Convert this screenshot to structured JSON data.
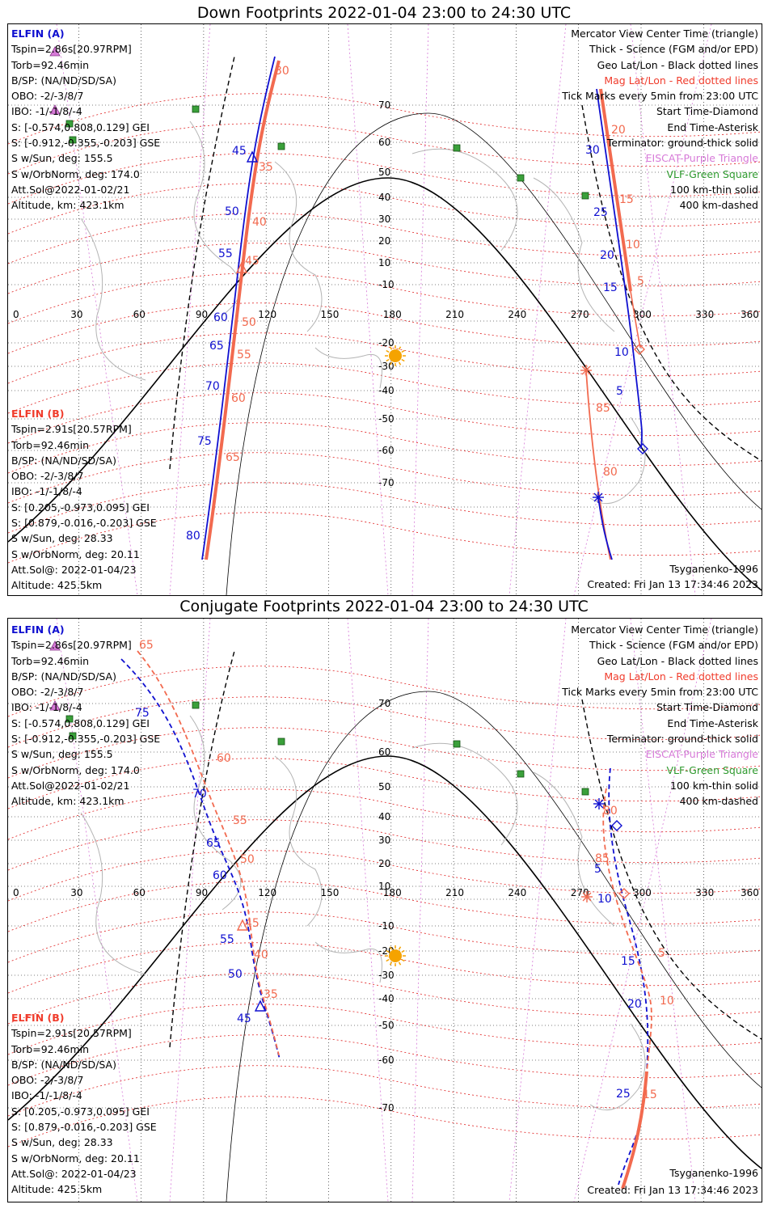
{
  "panels": [
    {
      "id": "down",
      "title": "Down Footprints 2022-01-04 23:00 to 24:30 UTC",
      "elfin_a": {
        "header": "ELFIN (A)",
        "lines": [
          "Tspin=2.86s[20.97RPM]",
          "Torb=92.46min",
          "B/SP: (NA/ND/SD/SA)",
          "OBO: -2/-3/8/7",
          "IBO: -1/-1/8/-4",
          "S: [-0.574,0.808,0.129] GEI",
          "S: [-0.912,-0.355,-0.203] GSE",
          "S w/Sun, deg: 155.5",
          "S w/OrbNorm, deg: 174.0",
          "Att.Sol@2022-01-02/21",
          "Altitude, km: 423.1km"
        ]
      },
      "elfin_b": {
        "header": "ELFIN (B)",
        "lines": [
          "Tspin=2.91s[20.57RPM]",
          "Torb=92.46min",
          "B/SP: (NA/ND/SD/SA)",
          "OBO: -2/-3/8/7",
          "IBO: -1/-1/8/-4",
          "S: [0.205,-0.973,0.095] GEI",
          "S: [0.879,-0.016,-0.203] GSE",
          "S w/Sun, deg: 28.33",
          "S w/OrbNorm, deg: 20.11",
          "Att.Sol@: 2022-01-04/23",
          "Altitude: 425.5km"
        ]
      },
      "legend": [
        {
          "text": "Mercator View Center Time (triangle)",
          "color": "black"
        },
        {
          "text": "Thick - Science (FGM and/or EPD)",
          "color": "black"
        },
        {
          "text": "Geo Lat/Lon - Black dotted lines",
          "color": "black"
        },
        {
          "text": "Mag Lat/Lon - Red dotted lines",
          "color": "red"
        },
        {
          "text": "Tick Marks every 5min from 23:00 UTC",
          "color": "black"
        },
        {
          "text": "Start Time-Diamond",
          "color": "black"
        },
        {
          "text": "End Time-Asterisk",
          "color": "black"
        },
        {
          "text": "Terminator: ground-thick solid",
          "color": "black"
        },
        {
          "text": "EISCAT-Purple Triangle",
          "color": "pink"
        },
        {
          "text": "VLF-Green Square",
          "color": "green"
        },
        {
          "text": "100 km-thin solid",
          "color": "black"
        },
        {
          "text": "400 km-dashed",
          "color": "black"
        }
      ],
      "model": "Tsyganenko-1996",
      "created": "Created: Fri Jan 13 17:34:46 2023"
    },
    {
      "id": "conjugate",
      "title": "Conjugate Footprints 2022-01-04 23:00 to 24:30 UTC",
      "elfin_a": {
        "header": "ELFIN (A)",
        "lines": [
          "Tspin=2.86s[20.97RPM]",
          "Torb=92.46min",
          "B/SP: (NA/ND/SD/SA)",
          "OBO: -2/-3/8/7",
          "IBO: -1/-1/8/-4",
          "S: [-0.574,0.808,0.129] GEI",
          "S: [-0.912,-0.355,-0.203] GSE",
          "S w/Sun, deg: 155.5",
          "S w/OrbNorm, deg: 174.0",
          "Att.Sol@2022-01-02/21",
          "Altitude, km: 423.1km"
        ]
      },
      "elfin_b": {
        "header": "ELFIN (B)",
        "lines": [
          "Tspin=2.91s[20.57RPM]",
          "Torb=92.46min",
          "B/SP: (NA/ND/SD/SA)",
          "OBO: -2/-3/8/7",
          "IBO: -1/-1/8/-4",
          "S: [0.205,-0.973,0.095] GEI",
          "S: [0.879,-0.016,-0.203] GSE",
          "S w/Sun, deg: 28.33",
          "S w/OrbNorm, deg: 20.11",
          "Att.Sol@: 2022-01-04/23",
          "Altitude: 425.5km"
        ]
      },
      "legend": [
        {
          "text": "Mercator View Center Time (triangle)",
          "color": "black"
        },
        {
          "text": "Thick - Science (FGM and/or EPD)",
          "color": "black"
        },
        {
          "text": "Geo Lat/Lon - Black dotted lines",
          "color": "black"
        },
        {
          "text": "Mag Lat/Lon - Red dotted lines",
          "color": "red"
        },
        {
          "text": "Tick Marks every 5min from 23:00 UTC",
          "color": "black"
        },
        {
          "text": "Start Time-Diamond",
          "color": "black"
        },
        {
          "text": "End Time-Asterisk",
          "color": "black"
        },
        {
          "text": "Terminator: ground-thick solid",
          "color": "black"
        },
        {
          "text": "EISCAT-Purple Triangle",
          "color": "pink"
        },
        {
          "text": "VLF-Green Square",
          "color": "green"
        },
        {
          "text": "100 km-thin solid",
          "color": "black"
        },
        {
          "text": "400 km-dashed",
          "color": "black"
        }
      ],
      "model": "Tsyganenko-1996",
      "created": "Created: Fri Jan 13 17:34:46 2023"
    }
  ],
  "map_axes": {
    "lon_ticks": [
      "0",
      "30",
      "60",
      "90",
      "120",
      "150",
      "180",
      "210",
      "240",
      "270",
      "300",
      "330",
      "360"
    ],
    "lat_ticks": [
      "70",
      "60",
      "50",
      "40",
      "30",
      "20",
      "10",
      "-10",
      "-20",
      "-30",
      "-40",
      "-50",
      "-60",
      "-70"
    ]
  },
  "track_labels": {
    "down_a": [
      "30",
      "25",
      "20",
      "15",
      "10",
      "5",
      "45",
      "50",
      "55",
      "60",
      "65",
      "70",
      "75",
      "80"
    ],
    "down_b": [
      "30",
      "35",
      "40",
      "45",
      "50",
      "55",
      "60",
      "65",
      "20",
      "15",
      "10",
      "5",
      "85",
      "80"
    ],
    "conj_a": [
      "75",
      "70",
      "65",
      "60",
      "55",
      "50",
      "45",
      "5",
      "10",
      "15",
      "20",
      "25"
    ],
    "conj_b": [
      "65",
      "60",
      "55",
      "50",
      "45",
      "40",
      "35",
      "80",
      "85",
      "5",
      "10",
      "15"
    ]
  },
  "colors": {
    "elfin_a": "#1010d0",
    "elfin_b": "#f26a4f",
    "mag_grid": "#e02020",
    "eiscat": "#d77ad8",
    "vlf": "#3aa03a",
    "sun": "#f5a300"
  }
}
